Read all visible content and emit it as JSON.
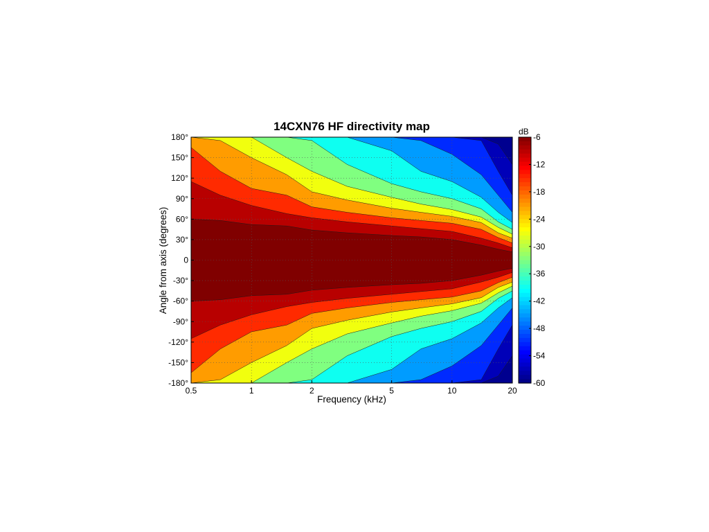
{
  "chart_data": {
    "type": "heatmap",
    "title": "14CXN76 HF directivity map",
    "xlabel": "Frequency (kHz)",
    "ylabel": "Angle from axis (degrees)",
    "x_scale": "log",
    "xlim": [
      0.5,
      20
    ],
    "ylim": [
      -180,
      180
    ],
    "x_ticks": [
      0.5,
      1,
      2,
      5,
      10,
      20
    ],
    "x_tick_labels": [
      "0.5",
      "1",
      "2",
      "5",
      "10",
      "20"
    ],
    "y_ticks": [
      180,
      150,
      120,
      90,
      60,
      30,
      0,
      -30,
      -60,
      -90,
      -120,
      -150,
      -180
    ],
    "y_tick_labels": [
      "180°",
      "150°",
      "120°",
      "90°",
      "60°",
      "30°",
      "0",
      "-30°",
      "-60°",
      "-90°",
      "-120°",
      "-150°",
      "-180°"
    ],
    "grid": true,
    "colorbar": {
      "label": "dB",
      "range": [
        -60,
        -6
      ],
      "ticks": [
        -6,
        -12,
        -18,
        -24,
        -30,
        -36,
        -42,
        -48,
        -54,
        -60
      ],
      "tick_labels": [
        "-6",
        "-12",
        "-18",
        "-24",
        "-30",
        "-36",
        "-42",
        "-48",
        "-54",
        "-60"
      ],
      "colormap": "jet"
    },
    "frequencies_khz": [
      0.5,
      0.7,
      1,
      1.5,
      2,
      3,
      5,
      7,
      10,
      14,
      17,
      20
    ],
    "level_contours_db": [
      {
        "level": -6,
        "half_angle_deg": [
          60,
          58,
          52,
          50,
          44,
          40,
          36,
          34,
          30,
          22,
          16,
          12
        ]
      },
      {
        "level": -9,
        "half_angle_deg": [
          115,
          95,
          80,
          68,
          62,
          56,
          50,
          46,
          42,
          32,
          25,
          18
        ]
      },
      {
        "level": -15,
        "half_angle_deg": [
          165,
          130,
          105,
          95,
          78,
          70,
          62,
          58,
          54,
          45,
          33,
          25
        ]
      },
      {
        "level": -21,
        "half_angle_deg": [
          180,
          175,
          150,
          125,
          100,
          88,
          76,
          70,
          64,
          55,
          40,
          32
        ]
      },
      {
        "level": -27,
        "half_angle_deg": [
          180,
          180,
          180,
          150,
          130,
          108,
          92,
          82,
          74,
          63,
          48,
          38
        ]
      },
      {
        "level": -33,
        "half_angle_deg": [
          180,
          180,
          180,
          180,
          175,
          140,
          112,
          100,
          90,
          75,
          56,
          45
        ]
      },
      {
        "level": -39,
        "half_angle_deg": [
          180,
          180,
          180,
          180,
          180,
          180,
          160,
          130,
          115,
          92,
          70,
          55
        ]
      },
      {
        "level": -45,
        "half_angle_deg": [
          180,
          180,
          180,
          180,
          180,
          180,
          180,
          175,
          155,
          125,
          95,
          70
        ]
      },
      {
        "level": -51,
        "half_angle_deg": [
          180,
          180,
          180,
          180,
          180,
          180,
          180,
          180,
          180,
          175,
          130,
          95
        ]
      },
      {
        "level": -57,
        "half_angle_deg": [
          180,
          180,
          180,
          180,
          180,
          180,
          180,
          180,
          180,
          180,
          170,
          140
        ]
      }
    ]
  }
}
